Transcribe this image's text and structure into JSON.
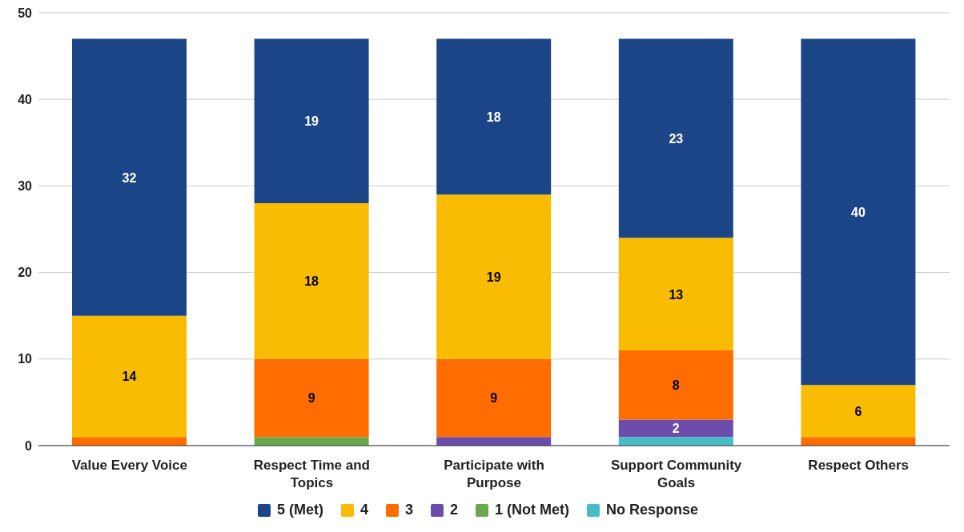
{
  "chart_data": {
    "type": "bar",
    "stacked": true,
    "categories": [
      "Value Every Voice",
      "Respect Time and Topics",
      "Participate with Purpose",
      "Support Community Goals",
      "Respect Others"
    ],
    "series": [
      {
        "name": "No Response",
        "color": "#46bdc6",
        "values": [
          null,
          null,
          null,
          1,
          null
        ],
        "value_labels": [
          null,
          null,
          null,
          null,
          null
        ]
      },
      {
        "name": "1 (Not Met)",
        "color": "#6aa84f",
        "values": [
          null,
          1,
          null,
          null,
          null
        ],
        "value_labels": [
          null,
          null,
          null,
          null,
          null
        ]
      },
      {
        "name": "2",
        "color": "#6c4dab",
        "values": [
          null,
          null,
          1,
          2,
          null
        ],
        "value_labels": [
          null,
          null,
          null,
          "2",
          null
        ]
      },
      {
        "name": "3",
        "color": "#ff6d01",
        "values": [
          1,
          9,
          9,
          8,
          1
        ],
        "value_labels": [
          null,
          "9",
          "9",
          "8",
          null
        ]
      },
      {
        "name": "4",
        "color": "#f9bc02",
        "values": [
          14,
          18,
          19,
          13,
          6
        ],
        "value_labels": [
          "14",
          "18",
          "19",
          "13",
          "6"
        ]
      },
      {
        "name": "5 (Met)",
        "color": "#1c4587",
        "values": [
          32,
          19,
          18,
          23,
          40
        ],
        "value_labels": [
          "32",
          "19",
          "18",
          "23",
          "40"
        ]
      }
    ],
    "ylim": [
      0,
      50
    ],
    "yticks": [
      0,
      10,
      20,
      30,
      40,
      50
    ],
    "grid": "y",
    "legend": "bottom"
  }
}
